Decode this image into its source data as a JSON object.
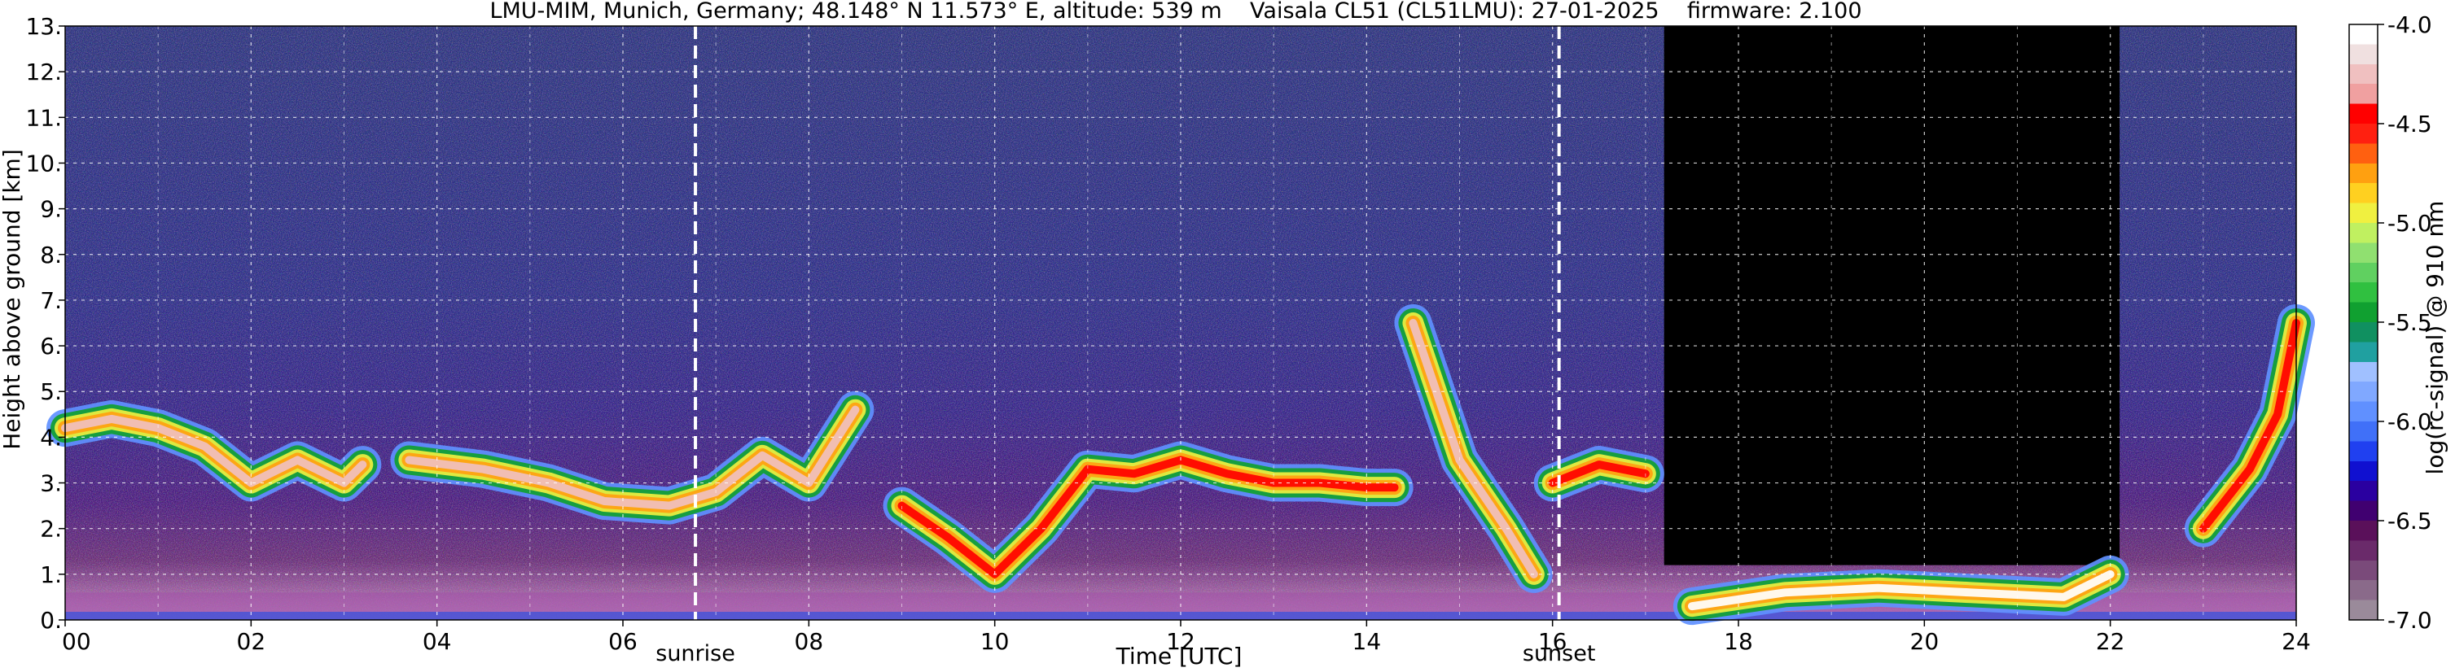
{
  "chart_data": {
    "type": "heatmap",
    "title": "LMU-MIM, Munich, Germany; 48.148° N 11.573° E, altitude: 539 m    Vaisala CL51 (CL51LMU): 27-01-2025    firmware: 2.100",
    "xlabel": "Time [UTC]",
    "ylabel": "Height above ground [km]",
    "x_range": [
      0,
      24
    ],
    "y_range": [
      0,
      13
    ],
    "x_ticks": [
      "00",
      "02",
      "04",
      "06",
      "08",
      "10",
      "12",
      "14",
      "16",
      "18",
      "20",
      "22",
      "24"
    ],
    "y_ticks": [
      "0.",
      "1.",
      "2.",
      "3.",
      "4.",
      "5.",
      "6.",
      "7.",
      "8.",
      "9.",
      "10.",
      "11.",
      "12.",
      "13."
    ],
    "grid": true,
    "colorbar": {
      "label": "log(rc-signal) @ 910 nm",
      "range": [
        -7.0,
        -4.0
      ],
      "ticks": [
        "-4.0",
        "-4.5",
        "-5.0",
        "-5.5",
        "-6.0",
        "-6.5",
        "-7.0"
      ],
      "colors": [
        "#9a8a9a",
        "#8a6a8a",
        "#7a4a7a",
        "#6a2a6a",
        "#5a105a",
        "#400070",
        "#2a00a0",
        "#1010d0",
        "#2040f0",
        "#4070f8",
        "#6090ff",
        "#80a8ff",
        "#a0c0ff",
        "#20a0a0",
        "#109060",
        "#10a030",
        "#30c040",
        "#60d060",
        "#90e070",
        "#c0f060",
        "#f0f040",
        "#ffd020",
        "#ffa010",
        "#ff6010",
        "#ff2010",
        "#ff0000",
        "#f0a0a0",
        "#f0c0c0",
        "#f0e0e0",
        "#ffffff"
      ]
    },
    "markers": [
      {
        "label": "sunrise",
        "time_utc": 6.78
      },
      {
        "label": "sunset",
        "time_utc": 16.07
      }
    ],
    "no_signal_region": {
      "x_start": 17.2,
      "x_end": 22.1,
      "y_start": 1.2,
      "y_end": 13.0
    },
    "cloud_layers": [
      {
        "x": [
          0.0,
          0.5,
          1.0,
          1.5,
          2.0,
          2.5,
          3.0,
          3.2
        ],
        "y": [
          4.2,
          4.4,
          4.2,
          3.8,
          3.0,
          3.5,
          3.0,
          3.4
        ],
        "intensity": -4.3
      },
      {
        "x": [
          3.7,
          4.5,
          5.2,
          5.8,
          6.5,
          7.0,
          7.5,
          8.0,
          8.5
        ],
        "y": [
          3.5,
          3.3,
          3.0,
          2.6,
          2.5,
          2.8,
          3.6,
          3.0,
          4.6
        ],
        "intensity": -4.3
      },
      {
        "x": [
          9.0,
          9.5,
          10.0,
          10.5,
          11.0,
          11.5,
          12.0,
          12.5,
          13.0,
          13.5,
          14.0,
          14.3
        ],
        "y": [
          2.5,
          1.8,
          1.0,
          2.0,
          3.3,
          3.2,
          3.5,
          3.2,
          3.0,
          3.0,
          2.9,
          2.9
        ],
        "intensity": -4.4
      },
      {
        "x": [
          14.5,
          15.0,
          15.5,
          15.8
        ],
        "y": [
          6.5,
          3.5,
          2.0,
          1.0
        ],
        "intensity": -4.3
      },
      {
        "x": [
          16.0,
          16.5,
          17.0
        ],
        "y": [
          3.0,
          3.4,
          3.2
        ],
        "intensity": -4.4
      },
      {
        "x": [
          17.5,
          18.5,
          19.5,
          20.5,
          21.5,
          22.0
        ],
        "y": [
          0.3,
          0.6,
          0.7,
          0.6,
          0.5,
          1.0
        ],
        "intensity": -4.1
      },
      {
        "x": [
          23.0,
          23.5,
          23.8,
          24.0
        ],
        "y": [
          2.0,
          3.3,
          4.5,
          6.5
        ],
        "intensity": -4.4
      }
    ],
    "aerosol_layer": {
      "height_km": 0.6,
      "intensity": -5.5
    }
  }
}
